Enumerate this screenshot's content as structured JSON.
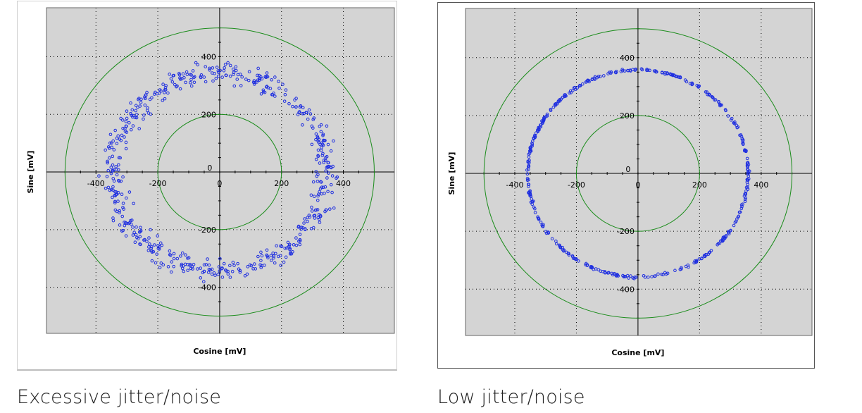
{
  "colors": {
    "plot_bg": "#d4d4d4",
    "circle": "#1a8c1a",
    "points": "#1f2fe0",
    "grid": "#000000"
  },
  "chart_data": [
    {
      "type": "scatter",
      "xlabel": "Cosine [mV]",
      "ylabel": "Sine [mV]",
      "xlim": [
        -560,
        565
      ],
      "ylim": [
        -560,
        570
      ],
      "xticks": [
        -400,
        -200,
        0,
        200,
        400
      ],
      "yticks": [
        -400,
        -200,
        0,
        200,
        400
      ],
      "reference_circles_radius": [
        200,
        500
      ],
      "grid": true,
      "series": [
        {
          "distribution": "ring",
          "mean_radius": 345,
          "radius_spread": 55,
          "count": 560
        }
      ],
      "caption": "Excessive jitter/noise"
    },
    {
      "type": "scatter",
      "xlabel": "Cosine [mV]",
      "ylabel": "Sine [mV]",
      "xlim": [
        -560,
        565
      ],
      "ylim": [
        -560,
        570
      ],
      "xticks": [
        -400,
        -200,
        0,
        200,
        400
      ],
      "yticks": [
        -400,
        -200,
        0,
        200,
        400
      ],
      "reference_circles_radius": [
        200,
        500
      ],
      "grid": true,
      "series": [
        {
          "distribution": "ring",
          "mean_radius": 358,
          "radius_spread": 6,
          "count": 420
        }
      ],
      "caption": "Low jitter/noise"
    }
  ]
}
